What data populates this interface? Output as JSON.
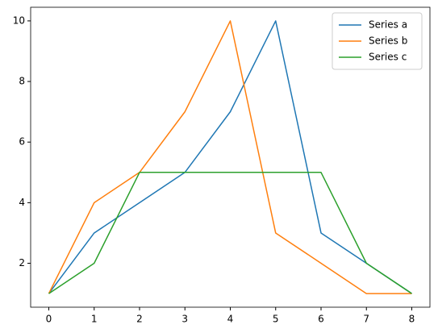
{
  "chart_data": {
    "type": "line",
    "x": [
      0,
      1,
      2,
      3,
      4,
      5,
      6,
      7,
      8
    ],
    "series": [
      {
        "name": "Series a",
        "color": "#1f77b4",
        "values": [
          1,
          3,
          4,
          5,
          7,
          10,
          3,
          2,
          1
        ]
      },
      {
        "name": "Series b",
        "color": "#ff7f0e",
        "values": [
          1,
          4,
          5,
          7,
          10,
          3,
          2,
          1,
          1
        ]
      },
      {
        "name": "Series c",
        "color": "#2ca02c",
        "values": [
          1,
          2,
          5,
          5,
          5,
          5,
          5,
          2,
          1
        ]
      }
    ],
    "xlim": [
      -0.4,
      8.4
    ],
    "xticks": [
      0,
      1,
      2,
      3,
      4,
      5,
      6,
      7,
      8
    ],
    "ylim": [
      0.55,
      10.45
    ],
    "yticks": [
      2,
      4,
      6,
      8,
      10
    ],
    "grid": false,
    "legend": "upper right"
  }
}
